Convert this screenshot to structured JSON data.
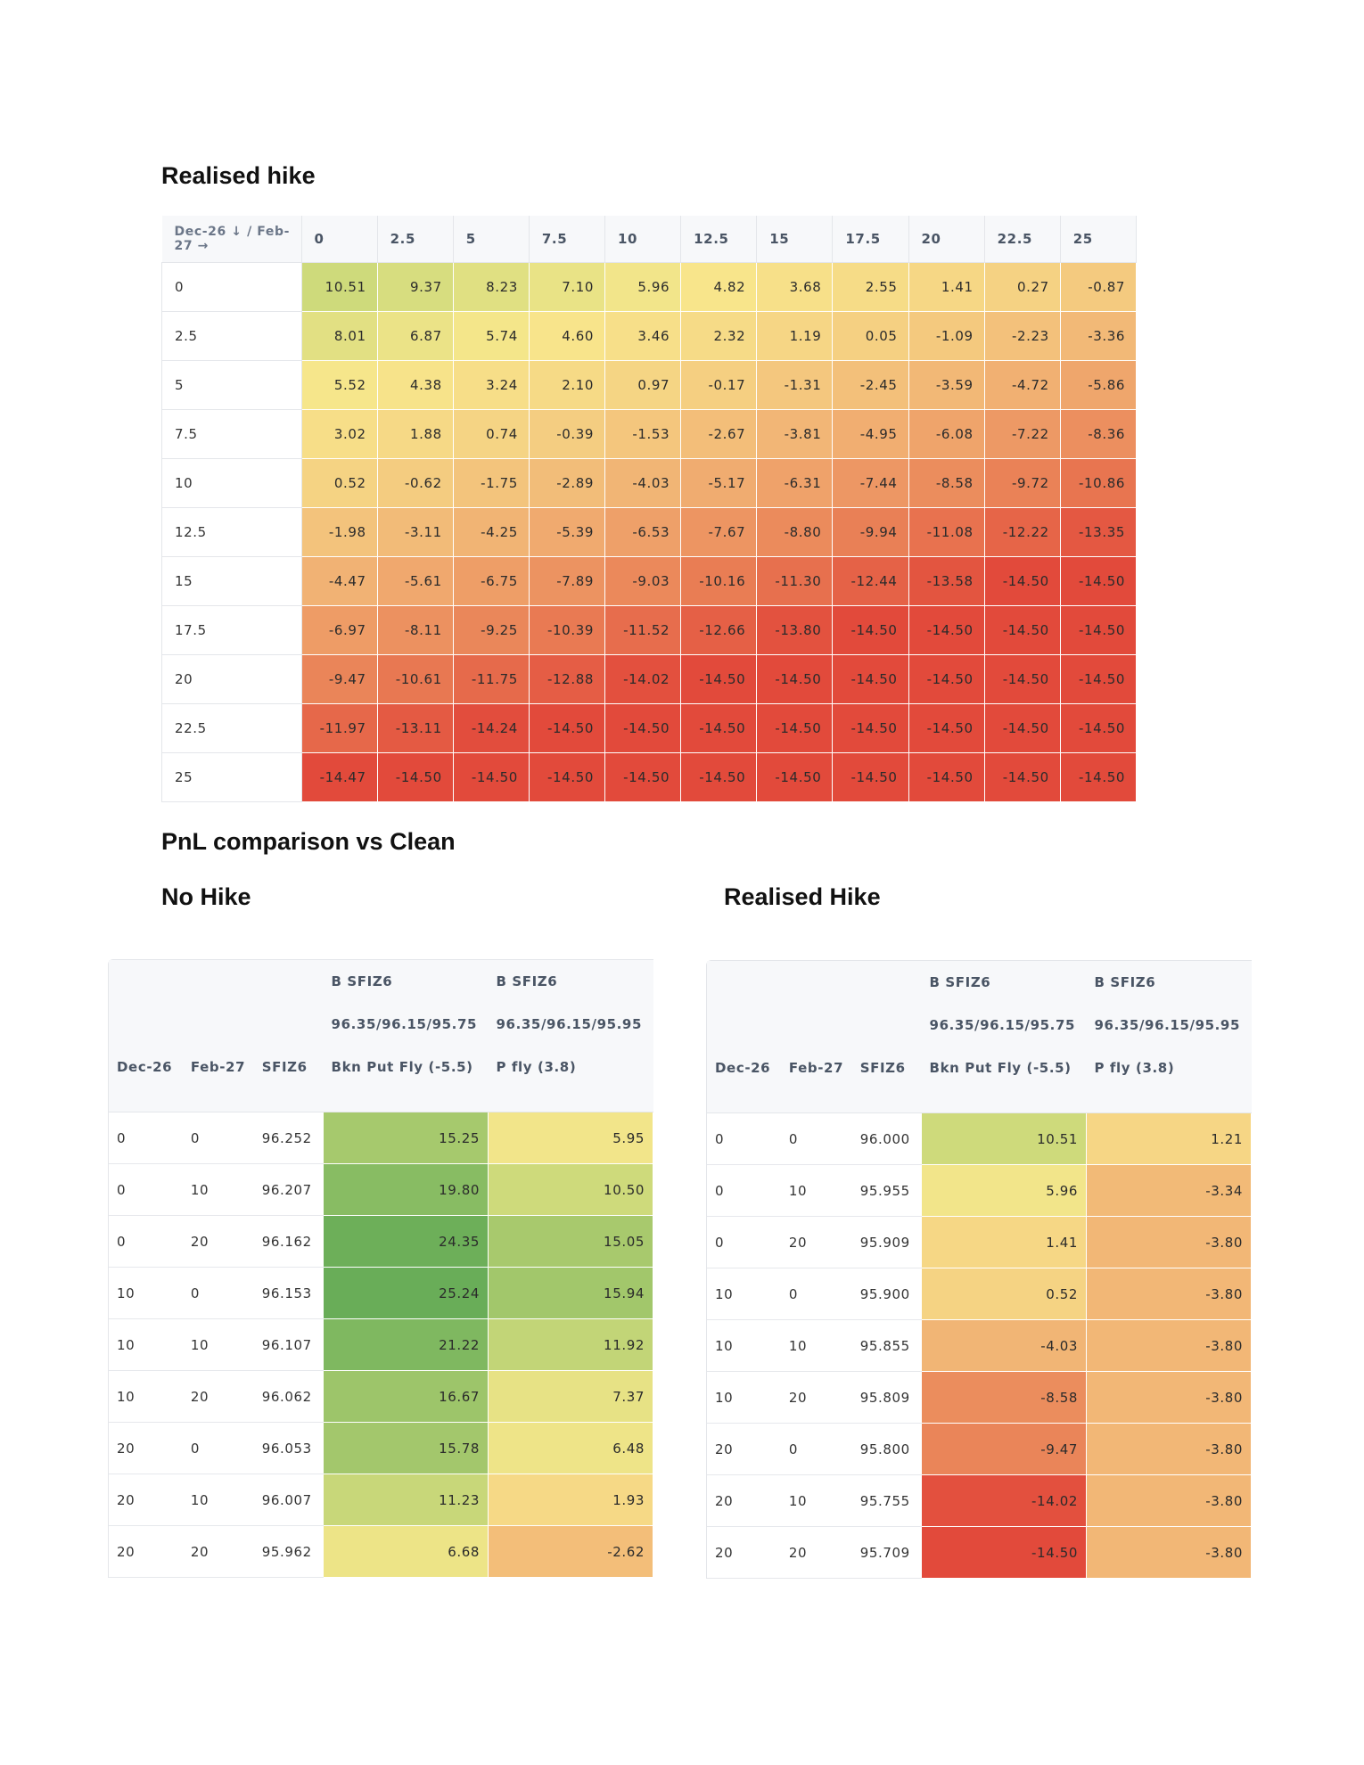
{
  "titles": {
    "realised_hike": "Realised hike",
    "pnl_comparison": "PnL comparison vs Clean",
    "no_hike": "No Hike",
    "realised_hike_2": "Realised Hike"
  },
  "heatmap": {
    "corner_label": "Dec-26 ↓ / Feb-27 →",
    "columns": [
      "0",
      "2.5",
      "5",
      "7.5",
      "10",
      "12.5",
      "15",
      "17.5",
      "20",
      "22.5",
      "25"
    ],
    "rows": [
      {
        "label": "0",
        "values": [
          10.51,
          9.37,
          8.23,
          7.1,
          5.96,
          4.82,
          3.68,
          2.55,
          1.41,
          0.27,
          -0.87
        ]
      },
      {
        "label": "2.5",
        "values": [
          8.01,
          6.87,
          5.74,
          4.6,
          3.46,
          2.32,
          1.19,
          0.05,
          -1.09,
          -2.23,
          -3.36
        ]
      },
      {
        "label": "5",
        "values": [
          5.52,
          4.38,
          3.24,
          2.1,
          0.97,
          -0.17,
          -1.31,
          -2.45,
          -3.59,
          -4.72,
          -5.86
        ]
      },
      {
        "label": "7.5",
        "values": [
          3.02,
          1.88,
          0.74,
          -0.39,
          -1.53,
          -2.67,
          -3.81,
          -4.95,
          -6.08,
          -7.22,
          -8.36
        ]
      },
      {
        "label": "10",
        "values": [
          0.52,
          -0.62,
          -1.75,
          -2.89,
          -4.03,
          -5.17,
          -6.31,
          -7.44,
          -8.58,
          -9.72,
          -10.86
        ]
      },
      {
        "label": "12.5",
        "values": [
          -1.98,
          -3.11,
          -4.25,
          -5.39,
          -6.53,
          -7.67,
          -8.8,
          -9.94,
          -11.08,
          -12.22,
          -13.35
        ]
      },
      {
        "label": "15",
        "values": [
          -4.47,
          -5.61,
          -6.75,
          -7.89,
          -9.03,
          -10.16,
          -11.3,
          -12.44,
          -13.58,
          -14.5,
          -14.5
        ]
      },
      {
        "label": "17.5",
        "values": [
          -6.97,
          -8.11,
          -9.25,
          -10.39,
          -11.52,
          -12.66,
          -13.8,
          -14.5,
          -14.5,
          -14.5,
          -14.5
        ]
      },
      {
        "label": "20",
        "values": [
          -9.47,
          -10.61,
          -11.75,
          -12.88,
          -14.02,
          -14.5,
          -14.5,
          -14.5,
          -14.5,
          -14.5,
          -14.5
        ]
      },
      {
        "label": "22.5",
        "values": [
          -11.97,
          -13.11,
          -14.24,
          -14.5,
          -14.5,
          -14.5,
          -14.5,
          -14.5,
          -14.5,
          -14.5,
          -14.5
        ]
      },
      {
        "label": "25",
        "values": [
          -14.47,
          -14.5,
          -14.5,
          -14.5,
          -14.5,
          -14.5,
          -14.5,
          -14.5,
          -14.5,
          -14.5,
          -14.5
        ]
      }
    ]
  },
  "comparison_headers": {
    "dec": "Dec-26",
    "feb": "Feb-27",
    "sfiz": "SFIZ6",
    "col1": [
      "B SFIZ6",
      "96.35/96.15/95.75",
      "Bkn Put Fly (-5.5)"
    ],
    "col2": [
      "B SFIZ6",
      "96.35/96.15/95.95",
      "P fly (3.8)"
    ]
  },
  "no_hike_rows": [
    {
      "dec": "0",
      "feb": "0",
      "sfiz": "96.252",
      "v1": 15.25,
      "v2": 5.95
    },
    {
      "dec": "0",
      "feb": "10",
      "sfiz": "96.207",
      "v1": 19.8,
      "v2": 10.5
    },
    {
      "dec": "0",
      "feb": "20",
      "sfiz": "96.162",
      "v1": 24.35,
      "v2": 15.05
    },
    {
      "dec": "10",
      "feb": "0",
      "sfiz": "96.153",
      "v1": 25.24,
      "v2": 15.94
    },
    {
      "dec": "10",
      "feb": "10",
      "sfiz": "96.107",
      "v1": 21.22,
      "v2": 11.92
    },
    {
      "dec": "10",
      "feb": "20",
      "sfiz": "96.062",
      "v1": 16.67,
      "v2": 7.37
    },
    {
      "dec": "20",
      "feb": "0",
      "sfiz": "96.053",
      "v1": 15.78,
      "v2": 6.48
    },
    {
      "dec": "20",
      "feb": "10",
      "sfiz": "96.007",
      "v1": 11.23,
      "v2": 1.93
    },
    {
      "dec": "20",
      "feb": "20",
      "sfiz": "95.962",
      "v1": 6.68,
      "v2": -2.62
    }
  ],
  "realised_rows": [
    {
      "dec": "0",
      "feb": "0",
      "sfiz": "96.000",
      "v1": 10.51,
      "v2": 1.21
    },
    {
      "dec": "0",
      "feb": "10",
      "sfiz": "95.955",
      "v1": 5.96,
      "v2": -3.34
    },
    {
      "dec": "0",
      "feb": "20",
      "sfiz": "95.909",
      "v1": 1.41,
      "v2": -3.8
    },
    {
      "dec": "10",
      "feb": "0",
      "sfiz": "95.900",
      "v1": 0.52,
      "v2": -3.8
    },
    {
      "dec": "10",
      "feb": "10",
      "sfiz": "95.855",
      "v1": -4.03,
      "v2": -3.8
    },
    {
      "dec": "10",
      "feb": "20",
      "sfiz": "95.809",
      "v1": -8.58,
      "v2": -3.8
    },
    {
      "dec": "20",
      "feb": "0",
      "sfiz": "95.800",
      "v1": -9.47,
      "v2": -3.8
    },
    {
      "dec": "20",
      "feb": "10",
      "sfiz": "95.755",
      "v1": -14.02,
      "v2": -3.8
    },
    {
      "dec": "20",
      "feb": "20",
      "sfiz": "95.709",
      "v1": -14.5,
      "v2": -3.8
    }
  ],
  "colors": {
    "scale": [
      "#e24a3b",
      "#ea8458",
      "#f1b173",
      "#f5d283",
      "#f8e78c",
      "#d1db7c",
      "#a7c96d",
      "#86bb62",
      "#69ad58"
    ],
    "header_bg": "#f7f8fa",
    "grid": "#e4e6ea"
  }
}
